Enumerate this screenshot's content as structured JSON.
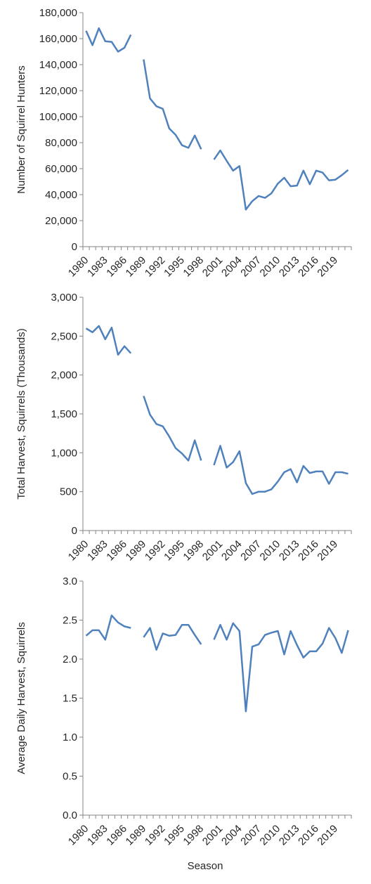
{
  "colors": {
    "line": "#4F81BD",
    "axis": "#868686",
    "text": "#262626"
  },
  "x_tick_labels": [
    "1980",
    "1983",
    "1986",
    "1989",
    "1992",
    "1995",
    "1998",
    "2001",
    "2004",
    "2007",
    "2010",
    "2013",
    "2016",
    "2019"
  ],
  "xlabel": "Season",
  "chart_data": [
    {
      "type": "line",
      "ylabel": "Number of Squirrel Hunters",
      "ylim": [
        0,
        180000
      ],
      "y_ticks": [
        0,
        20000,
        40000,
        60000,
        80000,
        100000,
        120000,
        140000,
        160000,
        180000
      ],
      "y_tick_labels": [
        "0",
        "20,000",
        "40,000",
        "60,000",
        "80,000",
        "100,000",
        "120,000",
        "140,000",
        "160,000",
        "180,000"
      ],
      "x": [
        1980,
        1981,
        1982,
        1983,
        1984,
        1985,
        1986,
        1987,
        1988,
        1989,
        1990,
        1991,
        1992,
        1993,
        1994,
        1995,
        1996,
        1997,
        1998,
        1999,
        2000,
        2001,
        2002,
        2003,
        2004,
        2005,
        2006,
        2007,
        2008,
        2009,
        2010,
        2011,
        2012,
        2013,
        2014,
        2015,
        2016,
        2017,
        2018,
        2019,
        2020,
        2021
      ],
      "series": [
        {
          "values": [
            166000,
            155000,
            168000,
            158000,
            157500,
            150000,
            153000,
            163000,
            null,
            144000,
            114000,
            108000,
            106000,
            91000,
            86000,
            78000,
            76000,
            85500,
            75000,
            null,
            67000,
            74000,
            66000,
            58500,
            62000,
            28500,
            35000,
            39000,
            37500,
            41000,
            48500,
            53000,
            46500,
            47000,
            58500,
            48000,
            58500,
            57000,
            51000,
            51500,
            55000,
            59000
          ]
        }
      ]
    },
    {
      "type": "line",
      "ylabel": "Total Harvest, Squirrels (Thousands)",
      "ylim": [
        0,
        3000
      ],
      "y_ticks": [
        0,
        500,
        1000,
        1500,
        2000,
        2500,
        3000
      ],
      "y_tick_labels": [
        "0",
        "500",
        "1,000",
        "1,500",
        "2,000",
        "2,500",
        "3,000"
      ],
      "x": [
        1980,
        1981,
        1982,
        1983,
        1984,
        1985,
        1986,
        1987,
        1988,
        1989,
        1990,
        1991,
        1992,
        1993,
        1994,
        1995,
        1996,
        1997,
        1998,
        1999,
        2000,
        2001,
        2002,
        2003,
        2004,
        2005,
        2006,
        2007,
        2008,
        2009,
        2010,
        2011,
        2012,
        2013,
        2014,
        2015,
        2016,
        2017,
        2018,
        2019,
        2020,
        2021
      ],
      "series": [
        {
          "values": [
            2600,
            2550,
            2630,
            2460,
            2610,
            2260,
            2370,
            2280,
            null,
            1730,
            1490,
            1370,
            1340,
            1210,
            1060,
            990,
            900,
            1160,
            900,
            null,
            840,
            1090,
            810,
            880,
            1020,
            610,
            470,
            500,
            500,
            530,
            630,
            750,
            790,
            620,
            830,
            740,
            760,
            760,
            600,
            750,
            750,
            730
          ]
        }
      ]
    },
    {
      "type": "line",
      "ylabel": "Average Daily Harvest, Squirrels",
      "xlabel": "Season",
      "ylim": [
        0,
        3.0
      ],
      "y_ticks": [
        0,
        0.5,
        1.0,
        1.5,
        2.0,
        2.5,
        3.0
      ],
      "y_tick_labels": [
        "0.0",
        "0.5",
        "1.0",
        "1.5",
        "2.0",
        "2.5",
        "3.0"
      ],
      "x": [
        1980,
        1981,
        1982,
        1983,
        1984,
        1985,
        1986,
        1987,
        1988,
        1989,
        1990,
        1991,
        1992,
        1993,
        1994,
        1995,
        1996,
        1997,
        1998,
        1999,
        2000,
        2001,
        2002,
        2003,
        2004,
        2005,
        2006,
        2007,
        2008,
        2009,
        2010,
        2011,
        2012,
        2013,
        2014,
        2015,
        2016,
        2017,
        2018,
        2019,
        2020,
        2021
      ],
      "series": [
        {
          "values": [
            2.3,
            2.37,
            2.37,
            2.25,
            2.56,
            2.47,
            2.42,
            2.4,
            null,
            2.28,
            2.4,
            2.12,
            2.33,
            2.3,
            2.31,
            2.44,
            2.44,
            2.31,
            2.19,
            null,
            2.25,
            2.44,
            2.25,
            2.46,
            2.36,
            1.33,
            2.16,
            2.19,
            2.31,
            2.34,
            2.36,
            2.06,
            2.36,
            2.18,
            2.02,
            2.1,
            2.1,
            2.2,
            2.4,
            2.27,
            2.08,
            2.37
          ]
        }
      ]
    }
  ]
}
